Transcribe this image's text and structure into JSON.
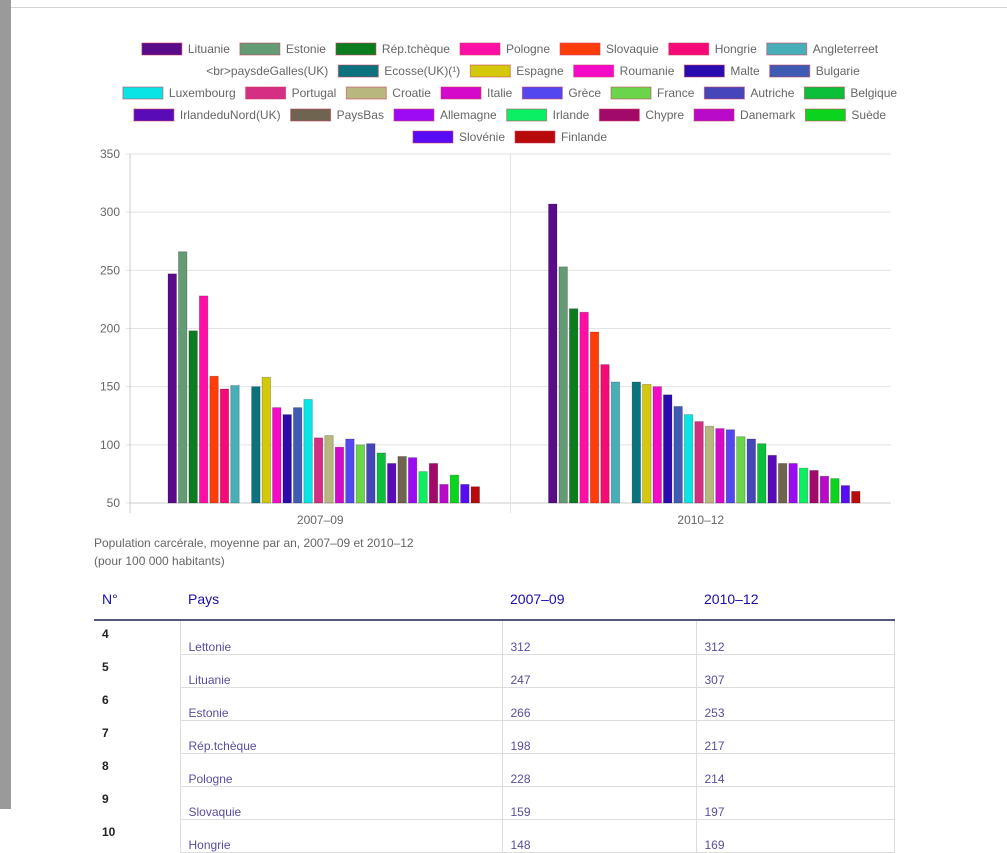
{
  "page": {
    "caption_line1": "Population carcérale, moyenne par an, 2007–09 et 2010–12",
    "caption_line2": "(pour 100 000 habitants)"
  },
  "table": {
    "headers": {
      "num": "N°",
      "country": "Pays",
      "p1": "2007–09",
      "p2": "2010–12"
    },
    "rows": [
      {
        "num": "4",
        "country": "Lettonie",
        "v1": "312",
        "v2": "312"
      },
      {
        "num": "5",
        "country": "Lituanie",
        "v1": "247",
        "v2": "307"
      },
      {
        "num": "6",
        "country": "Estonie",
        "v1": "266",
        "v2": "253"
      },
      {
        "num": "7",
        "country": "Rép.tchèque",
        "v1": "198",
        "v2": "217"
      },
      {
        "num": "8",
        "country": "Pologne",
        "v1": "228",
        "v2": "214"
      },
      {
        "num": "9",
        "country": "Slovaquie",
        "v1": "159",
        "v2": "197"
      },
      {
        "num": "10",
        "country": "Hongrie",
        "v1": "148",
        "v2": "169"
      }
    ]
  },
  "chart_data": {
    "type": "bar",
    "categories": [
      "2007–09",
      "2010–12"
    ],
    "ylim": [
      50,
      350
    ],
    "yticks": [
      "50",
      "100",
      "150",
      "200",
      "250",
      "300",
      "350"
    ],
    "grid": true,
    "legend_position": "top",
    "series": [
      {
        "name": "Lituanie",
        "color": "#5a0b8a",
        "values": [
          247,
          307
        ]
      },
      {
        "name": "Estonie",
        "color": "#639b74",
        "values": [
          266,
          253
        ]
      },
      {
        "name": "Rép.tchèque",
        "color": "#0b7d1f",
        "values": [
          198,
          217
        ]
      },
      {
        "name": "Pologne",
        "color": "#ff0fa6",
        "values": [
          228,
          214
        ]
      },
      {
        "name": "Slovaquie",
        "color": "#ff3d0a",
        "values": [
          159,
          197
        ]
      },
      {
        "name": "Hongrie",
        "color": "#f50a77",
        "values": [
          148,
          169
        ]
      },
      {
        "name": "Angleterreet",
        "color": "#48afb8",
        "values": [
          151,
          154
        ]
      },
      {
        "name": "<br>paysdeGalles(UK)",
        "color": "#ffffff",
        "values": [
          null,
          null
        ]
      },
      {
        "name": "Ecosse(UK)(¹)",
        "color": "#0c737e",
        "values": [
          150,
          154
        ]
      },
      {
        "name": "Espagne",
        "color": "#d4c80a",
        "values": [
          158,
          152
        ]
      },
      {
        "name": "Roumanie",
        "color": "#f50ac8",
        "values": [
          132,
          150
        ]
      },
      {
        "name": "Malte",
        "color": "#2a0bb0",
        "values": [
          126,
          143
        ]
      },
      {
        "name": "Bulgarie",
        "color": "#3f5bb3",
        "values": [
          132,
          133
        ]
      },
      {
        "name": "Luxembourg",
        "color": "#0be4e4",
        "values": [
          139,
          126
        ]
      },
      {
        "name": "Portugal",
        "color": "#d42f82",
        "values": [
          106,
          120
        ]
      },
      {
        "name": "Croatie",
        "color": "#b8b87e",
        "values": [
          108,
          116
        ]
      },
      {
        "name": "Italie",
        "color": "#d40acb",
        "values": [
          98,
          114
        ]
      },
      {
        "name": "Grèce",
        "color": "#5348f0",
        "values": [
          105,
          113
        ]
      },
      {
        "name": "France",
        "color": "#6ad44a",
        "values": [
          100,
          107
        ]
      },
      {
        "name": "Autriche",
        "color": "#4646ba",
        "values": [
          101,
          105
        ]
      },
      {
        "name": "Belgique",
        "color": "#0bbf3a",
        "values": [
          93,
          101
        ]
      },
      {
        "name": "IrlandeduNord(UK)",
        "color": "#5a0bb8",
        "values": [
          84,
          91
        ]
      },
      {
        "name": "PaysBas",
        "color": "#6e6450",
        "values": [
          90,
          84
        ]
      },
      {
        "name": "Allemagne",
        "color": "#9d0bf5",
        "values": [
          89,
          84
        ]
      },
      {
        "name": "Irlande",
        "color": "#0bf062",
        "values": [
          77,
          80
        ]
      },
      {
        "name": "Chypre",
        "color": "#a10a68",
        "values": [
          84,
          78
        ]
      },
      {
        "name": "Danemark",
        "color": "#b80ac8",
        "values": [
          66,
          73
        ]
      },
      {
        "name": "Suède",
        "color": "#0bd41f",
        "values": [
          74,
          71
        ]
      },
      {
        "name": "Slovénie",
        "color": "#5a0bf5",
        "values": [
          66,
          65
        ]
      },
      {
        "name": "Finlande",
        "color": "#b80a0a",
        "values": [
          64,
          60
        ]
      }
    ]
  }
}
